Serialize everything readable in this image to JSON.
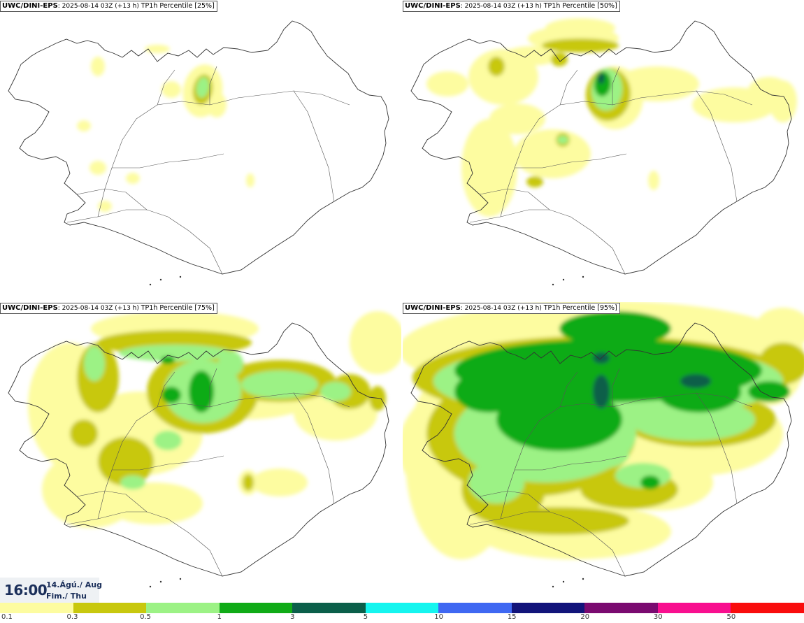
{
  "panels": [
    {
      "model": "UWC/DINI-EPS",
      "run": ": 2025-08-14 03Z (+13 h) ",
      "param": "TP1h Percentile ",
      "percentile": "[25%]"
    },
    {
      "model": "UWC/DINI-EPS",
      "run": ": 2025-08-14 03Z (+13 h) ",
      "param": "TP1h Percentile ",
      "percentile": "[50%]"
    },
    {
      "model": "UWC/DINI-EPS",
      "run": ": 2025-08-14 03Z (+13 h) ",
      "param": "TP1h Percentile ",
      "percentile": "[75%]"
    },
    {
      "model": "UWC/DINI-EPS",
      "run": ": 2025-08-14 03Z (+13 h) ",
      "param": "TP1h Percentile ",
      "percentile": "[95%]"
    }
  ],
  "valid": {
    "time": "16:00",
    "date": "14.Ágú./ Aug",
    "weekday": "Fim./ Thu"
  },
  "colorbar": {
    "colors": [
      "#fdfca0",
      "#c8c80e",
      "#9cf285",
      "#10ab17",
      "#0b5f4a",
      "#15f5ef",
      "#3f68f2",
      "#12147a",
      "#7a0a70",
      "#f80f8f",
      "#f90d0d"
    ],
    "labels": [
      "0.1",
      "0.3",
      "0.5",
      "1",
      "3",
      "5",
      "10",
      "15",
      "20",
      "30",
      "50"
    ]
  },
  "colors": {
    "coast": "#333333",
    "title_text": "#1b2f5a"
  }
}
